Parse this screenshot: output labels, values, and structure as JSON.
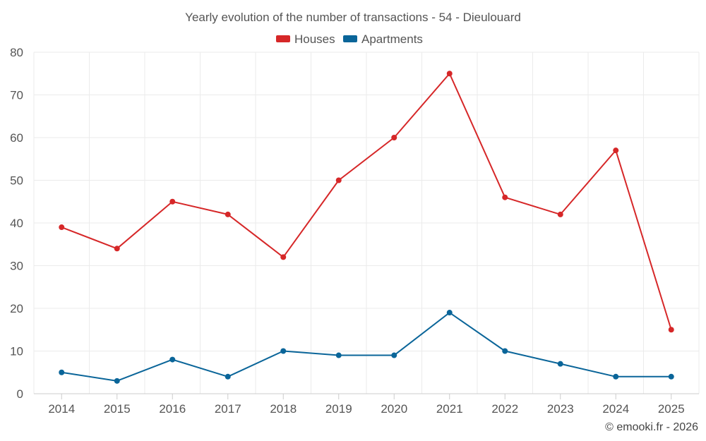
{
  "chart_data": {
    "type": "line",
    "title": "Yearly evolution of the number of transactions - 54 - Dieulouard",
    "categories": [
      "2014",
      "2015",
      "2016",
      "2017",
      "2018",
      "2019",
      "2020",
      "2021",
      "2022",
      "2023",
      "2024",
      "2025"
    ],
    "series": [
      {
        "name": "Houses",
        "color": "#d62728",
        "values": [
          39,
          34,
          45,
          42,
          32,
          50,
          60,
          75,
          46,
          42,
          57,
          15
        ]
      },
      {
        "name": "Apartments",
        "color": "#0a6599",
        "values": [
          5,
          3,
          8,
          4,
          10,
          9,
          9,
          19,
          10,
          7,
          4,
          4
        ]
      }
    ],
    "ylim": [
      0,
      80
    ],
    "yticks": [
      0,
      10,
      20,
      30,
      40,
      50,
      60,
      70,
      80
    ],
    "xlabel": "",
    "ylabel": "",
    "grid": true,
    "legend_position": "top-center"
  },
  "credit": "© emooki.fr - 2026"
}
